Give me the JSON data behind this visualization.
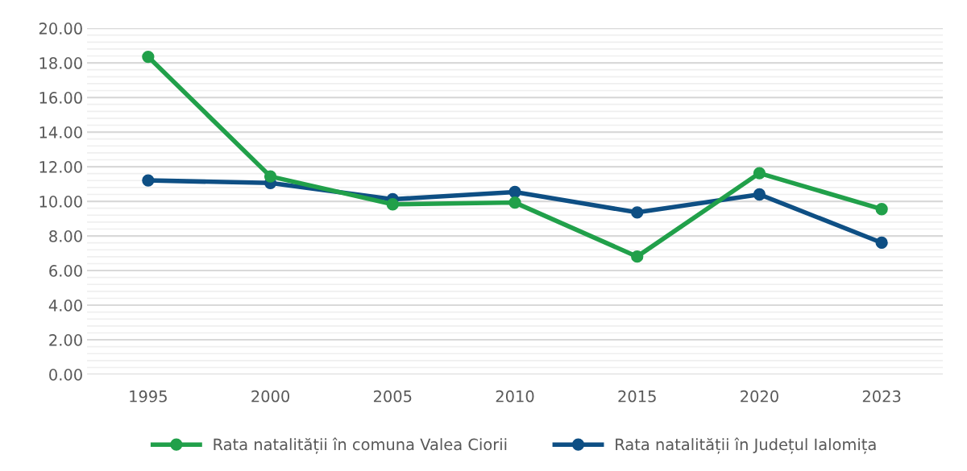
{
  "chart_data": {
    "type": "line",
    "categories": [
      "1995",
      "2000",
      "2005",
      "2010",
      "2015",
      "2020",
      "2023"
    ],
    "series": [
      {
        "name": "Rata natalității în comuna Valea Ciorii",
        "color": "#21a04a",
        "values": [
          18.35,
          11.44,
          9.83,
          9.93,
          6.81,
          11.63,
          9.55
        ]
      },
      {
        "name": "Rata natalității în Județul Ialomița",
        "color": "#0e4f84",
        "values": [
          11.21,
          11.06,
          10.12,
          10.54,
          9.36,
          10.4,
          7.61
        ]
      }
    ],
    "ylim": [
      0,
      20
    ],
    "yticks": [
      {
        "value": 0,
        "label": "0.00"
      },
      {
        "value": 0.4,
        "label": null
      },
      {
        "value": 0.8,
        "label": null
      },
      {
        "value": 1.2,
        "label": null
      },
      {
        "value": 1.6,
        "label": null
      },
      {
        "value": 2,
        "label": "2.00"
      },
      {
        "value": 2.4,
        "label": null
      },
      {
        "value": 2.8,
        "label": null
      },
      {
        "value": 3.2,
        "label": null
      },
      {
        "value": 3.6,
        "label": null
      },
      {
        "value": 4,
        "label": "4.00"
      },
      {
        "value": 4.4,
        "label": null
      },
      {
        "value": 4.8,
        "label": null
      },
      {
        "value": 5.2,
        "label": null
      },
      {
        "value": 5.6,
        "label": null
      },
      {
        "value": 6,
        "label": "6.00"
      },
      {
        "value": 6.4,
        "label": null
      },
      {
        "value": 6.8,
        "label": null
      },
      {
        "value": 7.2,
        "label": null
      },
      {
        "value": 7.6,
        "label": null
      },
      {
        "value": 8,
        "label": "8.00"
      },
      {
        "value": 8.4,
        "label": null
      },
      {
        "value": 8.8,
        "label": null
      },
      {
        "value": 9.2,
        "label": null
      },
      {
        "value": 9.6,
        "label": null
      },
      {
        "value": 10,
        "label": "10.00"
      },
      {
        "value": 10.4,
        "label": null
      },
      {
        "value": 10.8,
        "label": null
      },
      {
        "value": 11.2,
        "label": null
      },
      {
        "value": 11.6,
        "label": null
      },
      {
        "value": 12,
        "label": "12.00"
      },
      {
        "value": 12.4,
        "label": null
      },
      {
        "value": 12.8,
        "label": null
      },
      {
        "value": 13.2,
        "label": null
      },
      {
        "value": 13.6,
        "label": null
      },
      {
        "value": 14,
        "label": "14.00"
      },
      {
        "value": 14.4,
        "label": null
      },
      {
        "value": 14.8,
        "label": null
      },
      {
        "value": 15.2,
        "label": null
      },
      {
        "value": 15.6,
        "label": null
      },
      {
        "value": 16,
        "label": "16.00"
      },
      {
        "value": 16.4,
        "label": null
      },
      {
        "value": 16.8,
        "label": null
      },
      {
        "value": 17.2,
        "label": null
      },
      {
        "value": 17.6,
        "label": null
      },
      {
        "value": 18,
        "label": "18.00"
      },
      {
        "value": 18.4,
        "label": null
      },
      {
        "value": 18.8,
        "label": null
      },
      {
        "value": 19.2,
        "label": null
      },
      {
        "value": 19.6,
        "label": null
      },
      {
        "value": 20,
        "label": "20.00"
      }
    ],
    "grid": "y",
    "legend": "bottom",
    "marker": "circle",
    "line_style": "solid"
  }
}
